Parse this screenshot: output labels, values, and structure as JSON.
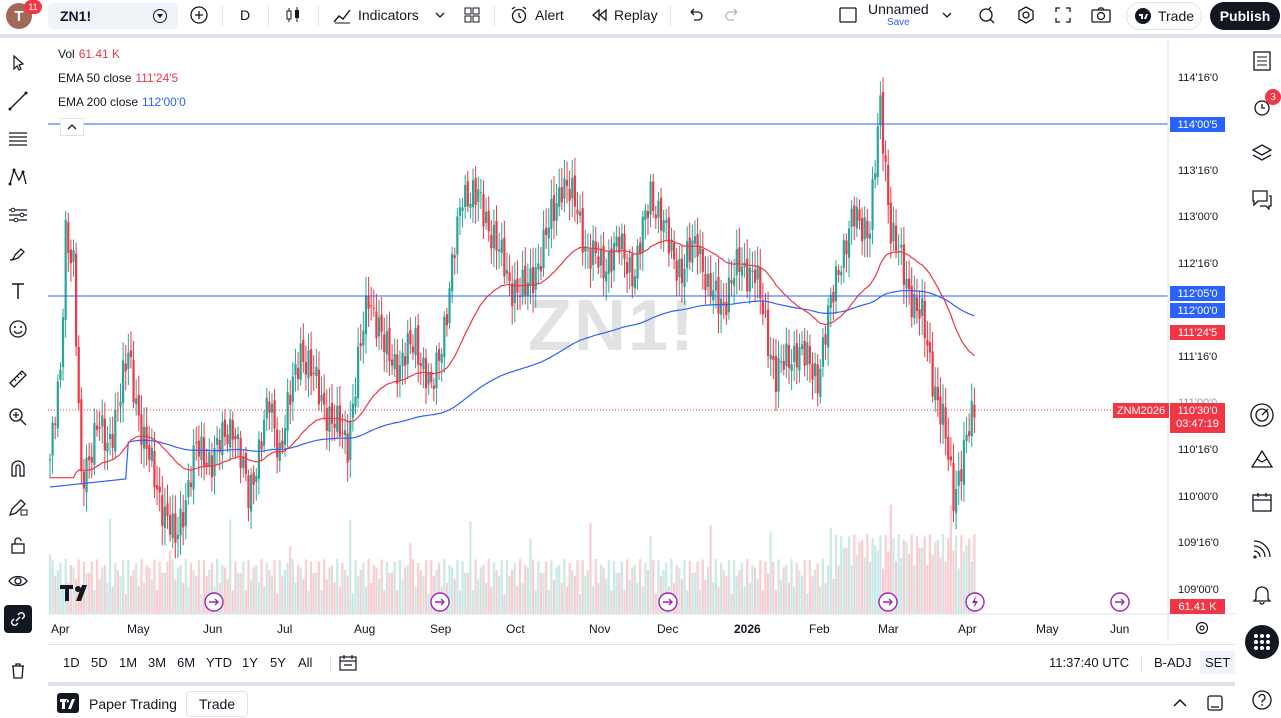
{
  "topbar": {
    "avatar_letter": "T",
    "avatar_badge": "11",
    "symbol": "ZN1!",
    "interval": "D",
    "indicators_label": "Indicators",
    "alert_label": "Alert",
    "replay_label": "Replay",
    "layout_name": "Unnamed",
    "layout_save": "Save",
    "trade_label": "Trade",
    "publish_label": "Publish"
  },
  "legend": {
    "vol_label": "Vol",
    "vol_value": "61.41 K",
    "ema50_label": "EMA 50 close",
    "ema50_value": "111'24'5",
    "ema200_label": "EMA 200 close",
    "ema200_value": "112'00'0"
  },
  "watermark": "ZN1!",
  "price_axis": [
    "114'16'0",
    "113'16'0",
    "113'00'0",
    "112'16'0",
    "111'16'0",
    "111'00'0",
    "110'16'0",
    "110'00'0",
    "109'16'0",
    "109'00'0"
  ],
  "tags": {
    "resistance_top": "114'00'5",
    "resistance_mid": "112'05'0",
    "ema200": "112'00'0",
    "ema50": "111'24'5",
    "contract": "ZNM2026",
    "last_price": "110'30'0",
    "countdown": "03:47:19",
    "volume": "61.41 K"
  },
  "time_axis": [
    "Apr",
    "May",
    "Jun",
    "Jul",
    "Aug",
    "Sep",
    "Oct",
    "Nov",
    "Dec",
    "2026",
    "Feb",
    "Mar",
    "Apr",
    "May",
    "Jun"
  ],
  "timeframes": [
    "1D",
    "5D",
    "1M",
    "3M",
    "6M",
    "YTD",
    "1Y",
    "5Y",
    "All"
  ],
  "clock": "11:37:40 UTC",
  "b_adj": "B-ADJ",
  "set": "SET",
  "footer": {
    "paper_trading": "Paper Trading",
    "trade": "Trade"
  },
  "rightbar": {
    "alerts_badge": "3"
  },
  "colors": {
    "up": "#26a69a",
    "down": "#f23645",
    "ema50": "#f23645",
    "ema200": "#2962ff",
    "hline": "#2962ff",
    "accent": "#2962ff"
  },
  "chart_data": {
    "type": "candlestick",
    "price_range": [
      108.8,
      114.7
    ],
    "ema50_value": 111.77,
    "ema200_value": 112.0,
    "horizontal_levels": [
      114.016,
      112.156
    ],
    "last_price": 110.94,
    "last_volume": "61.41 K"
  }
}
